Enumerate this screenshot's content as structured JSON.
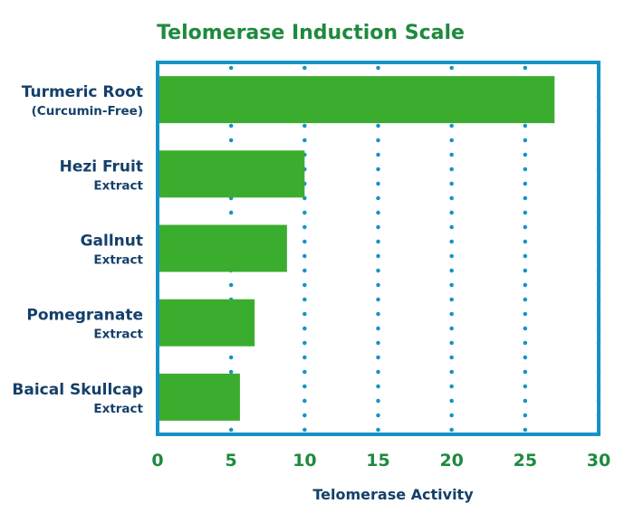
{
  "colors": {
    "title": "#1e8a3e",
    "bar": "#3bad2e",
    "frame": "#1593c7",
    "grid_dots": "#1593c7",
    "category_text": "#14406a",
    "tick_text": "#1e8a3e",
    "axis_title": "#14406a"
  },
  "chart_data": {
    "type": "bar",
    "orientation": "horizontal",
    "title": "Telomerase Induction Scale",
    "xlabel": "Telomerase Activity",
    "ylabel": "",
    "xlim": [
      0,
      30
    ],
    "xticks": [
      "0",
      "5",
      "10",
      "15",
      "20",
      "25",
      "30"
    ],
    "grid": "vertical dotted",
    "categories": [
      {
        "line1": "Turmeric Root",
        "line2": "(Curcumin-Free)"
      },
      {
        "line1": "Hezi Fruit",
        "line2": "Extract"
      },
      {
        "line1": "Gallnut",
        "line2": "Extract"
      },
      {
        "line1": "Pomegranate",
        "line2": "Extract"
      },
      {
        "line1": "Baical Skullcap",
        "line2": "Extract"
      }
    ],
    "values": [
      27,
      10,
      8.8,
      6.6,
      5.6
    ]
  }
}
